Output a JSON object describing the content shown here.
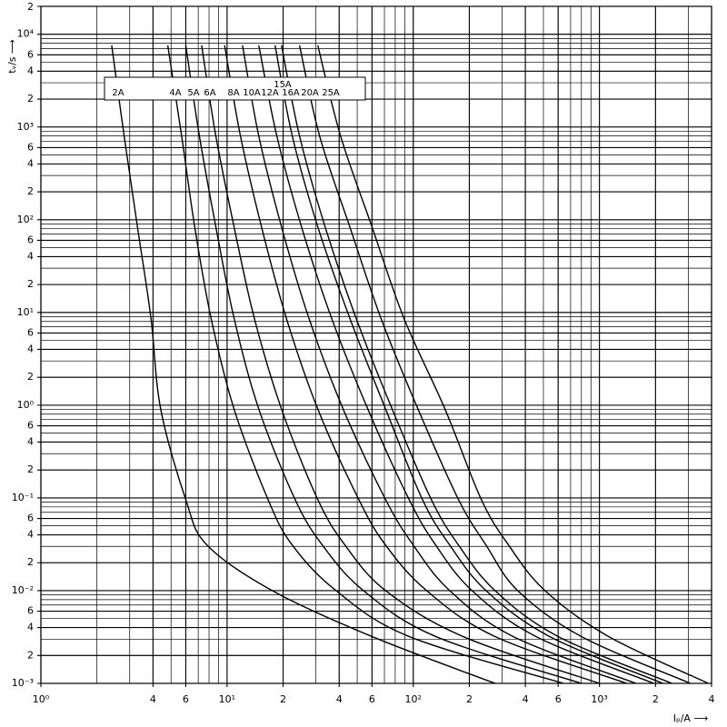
{
  "chart_data": {
    "type": "line",
    "x_label": "Iₚ/A ⟶",
    "y_label": "tᵥ/s ⟶",
    "log_x": true,
    "log_y": true,
    "grid": true,
    "color": "#000000",
    "xlim": [
      1,
      4000
    ],
    "ylim": [
      0.001,
      20000
    ],
    "xticks": [
      {
        "value": 1,
        "label": "10⁰"
      },
      4,
      6,
      {
        "value": 10,
        "label": "10¹"
      },
      {
        "value": 20,
        "label": "2"
      },
      {
        "value": 40,
        "label": "4"
      },
      {
        "value": 60,
        "label": "6"
      },
      {
        "value": 100,
        "label": "10²"
      },
      {
        "value": 200,
        "label": "2"
      },
      {
        "value": 400,
        "label": "4"
      },
      {
        "value": 600,
        "label": "6"
      },
      {
        "value": 1000,
        "label": "10³"
      },
      {
        "value": 2000,
        "label": "2"
      },
      {
        "value": 4000,
        "label": "4"
      }
    ],
    "yticks": [
      {
        "value": 20000,
        "label": "2"
      },
      {
        "value": 10000,
        "label": "10⁴"
      },
      {
        "value": 6000,
        "label": "6"
      },
      {
        "value": 4000,
        "label": "4"
      },
      {
        "value": 2000,
        "label": "2"
      },
      {
        "value": 1000,
        "label": "10³"
      },
      {
        "value": 600,
        "label": "6"
      },
      {
        "value": 400,
        "label": "4"
      },
      {
        "value": 200,
        "label": "2"
      },
      {
        "value": 100,
        "label": "10²"
      },
      {
        "value": 60,
        "label": "6"
      },
      {
        "value": 40,
        "label": "4"
      },
      {
        "value": 20,
        "label": "2"
      },
      {
        "value": 10,
        "label": "10¹"
      },
      6,
      4,
      2,
      {
        "value": 1,
        "label": "10⁰"
      },
      {
        "value": 0.6,
        "label": "6"
      },
      {
        "value": 0.4,
        "label": "4"
      },
      {
        "value": 0.2,
        "label": "2"
      },
      {
        "value": 0.1,
        "label": "10⁻¹"
      },
      {
        "value": 0.06,
        "label": "6"
      },
      {
        "value": 0.04,
        "label": "4"
      },
      {
        "value": 0.02,
        "label": "2"
      },
      {
        "value": 0.01,
        "label": "10⁻²"
      },
      {
        "value": 0.006,
        "label": "6"
      },
      {
        "value": 0.004,
        "label": "4"
      },
      {
        "value": 0.002,
        "label": "2"
      },
      {
        "value": 0.001,
        "label": "10⁻³"
      }
    ],
    "x_grid": [
      1,
      2,
      3,
      4,
      5,
      6,
      7,
      8,
      9,
      10,
      20,
      30,
      40,
      50,
      60,
      70,
      80,
      90,
      100,
      200,
      300,
      400,
      500,
      600,
      700,
      800,
      900,
      1000,
      2000,
      3000,
      4000
    ],
    "y_grid": [
      0.001,
      0.002,
      0.003,
      0.004,
      0.005,
      0.006,
      0.007,
      0.008,
      0.009,
      0.01,
      0.02,
      0.03,
      0.04,
      0.05,
      0.06,
      0.07,
      0.08,
      0.09,
      0.1,
      0.2,
      0.3,
      0.4,
      0.5,
      0.6,
      0.7,
      0.8,
      0.9,
      1,
      2,
      3,
      4,
      5,
      6,
      7,
      8,
      9,
      10,
      20,
      30,
      40,
      50,
      60,
      70,
      80,
      90,
      100,
      200,
      300,
      400,
      500,
      600,
      700,
      800,
      900,
      1000,
      2000,
      3000,
      4000,
      5000,
      6000,
      7000,
      8000,
      9000,
      10000,
      20000
    ],
    "series": [
      {
        "name": "2A",
        "x": [
          2.4,
          2.8,
          3.3,
          3.9,
          4.4,
          6.0,
          7.8,
          17.5,
          60,
          275
        ],
        "values": [
          7600,
          800,
          84,
          8.7,
          0.91,
          0.096,
          0.031,
          0.01,
          0.0032,
          0.001
        ]
      },
      {
        "name": "4A",
        "x": [
          4.8,
          5.7,
          6.7,
          8.2,
          10.9,
          16.6,
          22.4,
          38.5,
          95,
          640
        ],
        "values": [
          7600,
          800,
          84,
          8.7,
          0.91,
          0.096,
          0.031,
          0.01,
          0.0032,
          0.001
        ]
      },
      {
        "name": "5A",
        "x": [
          6.0,
          7.1,
          8.7,
          10.9,
          14.8,
          23.2,
          32.5,
          54,
          132,
          800
        ],
        "values": [
          7600,
          800,
          84,
          8.7,
          0.91,
          0.096,
          0.031,
          0.01,
          0.0032,
          0.001
        ]
      },
      {
        "name": "6A",
        "x": [
          7.3,
          8.7,
          10.9,
          14,
          19.6,
          30.7,
          43,
          71,
          185,
          1000
        ],
        "values": [
          7600,
          800,
          84,
          8.7,
          0.91,
          0.096,
          0.031,
          0.01,
          0.0032,
          0.001
        ]
      },
      {
        "name": "8A",
        "x": [
          9.7,
          11.8,
          15.3,
          20.8,
          30.7,
          51,
          71,
          118,
          275,
          1400
        ],
        "values": [
          7600,
          800,
          84,
          8.7,
          0.91,
          0.096,
          0.031,
          0.01,
          0.0032,
          0.001
        ]
      },
      {
        "name": "10A",
        "x": [
          12.1,
          14.8,
          19.6,
          27.5,
          42,
          71,
          100,
          157,
          344,
          1570
        ],
        "values": [
          7600,
          800,
          84,
          8.7,
          0.91,
          0.096,
          0.031,
          0.01,
          0.0032,
          0.001
        ]
      },
      {
        "name": "12A",
        "x": [
          14.8,
          18.5,
          25.1,
          36.4,
          57,
          95,
          132,
          207,
          456,
          1960
        ],
        "values": [
          7600,
          800,
          84,
          8.7,
          0.91,
          0.096,
          0.031,
          0.01,
          0.0032,
          0.001
        ]
      },
      {
        "name": "15A",
        "x": [
          18.1,
          22.4,
          30.7,
          45.6,
          71,
          112,
          157,
          246,
          540,
          2190
        ],
        "values": [
          7600,
          800,
          84,
          8.7,
          0.91,
          0.096,
          0.031,
          0.01,
          0.0032,
          0.001
        ]
      },
      {
        "name": "16A",
        "x": [
          19.6,
          24.5,
          33.6,
          49.3,
          77,
          125,
          175,
          275,
          600,
          2450
        ],
        "values": [
          7600,
          800,
          84,
          8.7,
          0.91,
          0.096,
          0.031,
          0.01,
          0.0032,
          0.001
        ]
      },
      {
        "name": "20A",
        "x": [
          24.5,
          31.4,
          45.6,
          67,
          106,
          175,
          246,
          364,
          800,
          3080
        ],
        "values": [
          7600,
          800,
          84,
          8.7,
          0.91,
          0.096,
          0.031,
          0.01,
          0.0032,
          0.001
        ]
      },
      {
        "name": "25A",
        "x": [
          30.7,
          40.7,
          60,
          89,
          148,
          232,
          325,
          510,
          1120,
          3850
        ],
        "values": [
          7600,
          800,
          84,
          8.7,
          0.91,
          0.096,
          0.031,
          0.01,
          0.0032,
          0.001
        ]
      }
    ]
  }
}
